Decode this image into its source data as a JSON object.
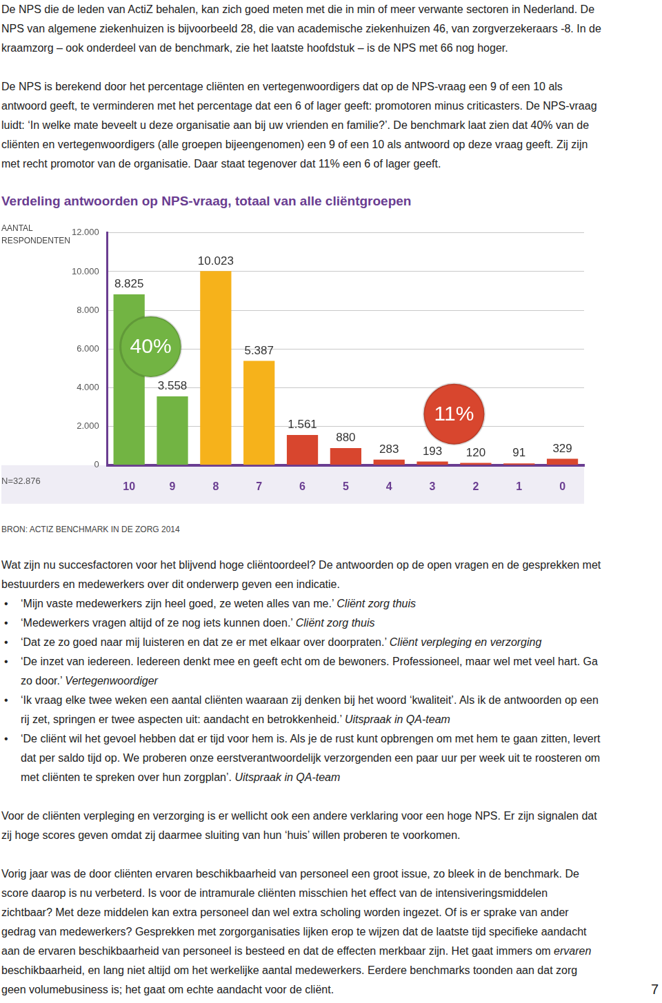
{
  "document": {
    "intro": [
      [
        {
          "text": "De NPS die de leden van ActiZ behalen, kan zich goed meten met die in min of meer verwante sectoren in Nederland. De NPS van algemene ziekenhuizen is bijvoorbeeld 28, die van academische ziekenhuizen 46, van zorgverzekeraars -8. In de kraamzorg – ook onderdeel van de benchmark, zie het laatste hoofdstuk – is de NPS met 66 nog hoger."
        }
      ],
      [
        {
          "text": "De NPS is berekend door het percentage cliënten en vertegenwoordigers dat op de NPS-vraag een 9 of een 10 als antwoord geeft, te verminderen met het percentage dat een 6 of lager geeft: promotoren minus criticasters. De NPS-vraag luidt: ‘In welke mate beveelt u deze organisatie aan bij uw vrienden en familie?’. De benchmark laat zien dat 40% van de cliënten en vertegenwoordigers (alle groepen bijeengenomen) een 9 of een 10 als antwoord op deze vraag geeft. Zij zijn met recht promotor van de organisatie. Daar staat tegenover dat 11% een 6 of lager geeft."
        }
      ]
    ],
    "after_chart": [
      [
        {
          "text": "Wat zijn nu succesfactoren voor het blijvend hoge cliëntoordeel? De antwoorden op de open vragen en de gesprekken met bestuurders en medewerkers over dit onderwerp geven een indicatie."
        }
      ]
    ],
    "bullets": [
      {
        "quote": "‘Mijn vaste medewerkers zijn heel goed, ze weten alles van me.’",
        "source": "Cliënt zorg thuis"
      },
      {
        "quote": "‘Medewerkers vragen altijd of ze nog iets kunnen doen.’",
        "source": "Cliënt zorg thuis"
      },
      {
        "quote": "‘Dat ze zo goed naar mij luisteren en dat ze er met elkaar over doorpraten.’",
        "source": "Cliënt verpleging en verzorging"
      },
      {
        "quote": "‘De inzet van iedereen. Iedereen denkt mee en geeft echt om de bewoners. Professioneel, maar wel met veel hart. Ga zo door.’",
        "source": "Vertegenwoordiger"
      },
      {
        "quote": "‘Ik vraag elke twee weken een aantal cliënten waaraan zij denken bij het woord ‘kwaliteit’. Als ik de antwoorden op een rij zet, springen er twee aspecten uit: aandacht en betrokkenheid.’",
        "source": "Uitspraak in QA-team"
      },
      {
        "quote": "‘De cliënt wil het gevoel hebben dat er tijd voor hem is. Als je de rust kunt opbrengen om met hem te gaan zitten, levert dat per saldo tijd op. We proberen onze eerstverantwoordelijk verzorgenden een paar uur per week uit te roosteren om met cliënten te spreken over hun zorgplan’.",
        "source": "Uitspraak in QA-team"
      }
    ],
    "closing": [
      [
        {
          "text": "Voor de cliënten verpleging en verzorging is er wellicht ook een andere verklaring voor een hoge NPS. Er zijn signalen dat zij hoge scores geven omdat zij daarmee sluiting van hun ‘huis’ willen proberen te voorkomen."
        }
      ],
      [
        {
          "text": "Vorig jaar was de door cliënten ervaren beschikbaarheid van personeel een groot issue, zo bleek in de benchmark. De score daarop is nu verbeterd. Is voor de intramurale cliënten misschien het effect van de intensiveringsmiddelen zichtbaar? Met deze middelen kan extra personeel dan wel extra scholing worden ingezet. Of is er sprake van ander gedrag van medewerkers? Gesprekken met zorgorganisaties lijken erop te wijzen dat de laatste tijd specifieke aandacht aan de ervaren beschikbaarheid van personeel is besteed en dat de effecten merkbaar zijn. Het gaat immers om "
        },
        {
          "text": "ervaren",
          "em": true
        },
        {
          "text": " beschikbaarheid, en lang niet altijd om het werkelijke aantal medewerkers. Eerdere benchmarks toonden aan dat zorg geen volumebusiness is; het gaat om echte aandacht voor de cliënt."
        }
      ]
    ],
    "page_number": "7"
  },
  "chart_data": {
    "type": "bar",
    "title": "Verdeling antwoorden op NPS-vraag, totaal van alle cliëntgroepen",
    "y_label": "AANTAL RESPONDENTEN",
    "n_label": "N=32.876",
    "source": "BRON: ACTIZ BENCHMARK IN DE ZORG 2014",
    "categories": [
      "10",
      "9",
      "8",
      "7",
      "6",
      "5",
      "4",
      "3",
      "2",
      "1",
      "0"
    ],
    "values": [
      8825,
      3558,
      10023,
      5387,
      1561,
      880,
      283,
      193,
      120,
      91,
      329
    ],
    "value_labels": [
      "8.825",
      "3.558",
      "10.023",
      "5.387",
      "1.561",
      "880",
      "283",
      "193",
      "120",
      "91",
      "329"
    ],
    "colors": [
      "#72b443",
      "#72b443",
      "#f6b21b",
      "#f6b21b",
      "#d8462e",
      "#d8462e",
      "#d8462e",
      "#d8462e",
      "#d8462e",
      "#d8462e",
      "#d8462e"
    ],
    "data_labels": true,
    "grid": true,
    "ylim": [
      0,
      12000
    ],
    "yticks": [
      0,
      {
        "value": 2000,
        "label": "2.000"
      },
      {
        "value": 4000,
        "label": "4.000"
      },
      {
        "value": 6000,
        "label": "6.000"
      },
      {
        "value": 8000,
        "label": "8.000"
      },
      {
        "value": 10000,
        "label": "10.000"
      },
      {
        "value": 12000,
        "label": "12.000"
      }
    ],
    "annotations": [
      {
        "text": "40%",
        "color": "#72b443"
      },
      {
        "text": "11%",
        "color": "#d8462e"
      }
    ]
  }
}
